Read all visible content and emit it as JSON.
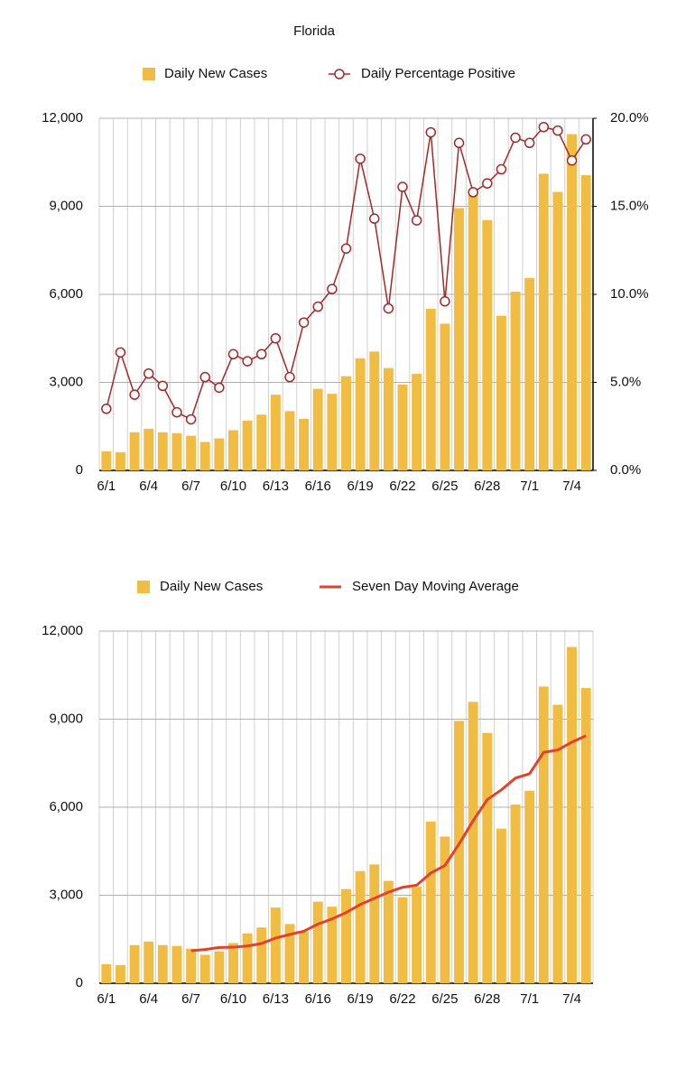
{
  "chart_data": [
    {
      "type": "combo",
      "title": "Florida",
      "categories": [
        "6/1",
        null,
        null,
        "6/4",
        null,
        null,
        "6/7",
        null,
        null,
        "6/10",
        null,
        null,
        "6/13",
        null,
        null,
        "6/16",
        null,
        null,
        "6/19",
        null,
        null,
        "6/22",
        null,
        null,
        "6/25",
        null,
        null,
        "6/28",
        null,
        null,
        "7/1",
        null,
        null,
        "7/4",
        null
      ],
      "series": [
        {
          "name": "Daily New Cases",
          "type": "bar",
          "color": "#f0bd42",
          "values": [
            650,
            620,
            1300,
            1420,
            1300,
            1270,
            1180,
            970,
            1090,
            1370,
            1700,
            1900,
            2580,
            2020,
            1760,
            2780,
            2610,
            3210,
            3820,
            4050,
            3490,
            2930,
            3290,
            5510,
            5000,
            8940,
            9590,
            8530,
            5270,
            6090,
            6560,
            10110,
            9490,
            11460,
            10060
          ]
        },
        {
          "name": "Daily Percentage Positive",
          "type": "line",
          "marker": "circle",
          "axis": "y2",
          "color": "#a3282a",
          "values": [
            3.5,
            6.7,
            4.3,
            5.5,
            4.8,
            3.3,
            2.9,
            5.3,
            4.7,
            6.6,
            6.2,
            6.6,
            7.5,
            5.3,
            8.4,
            9.3,
            10.3,
            12.6,
            17.7,
            14.3,
            9.2,
            16.1,
            14.2,
            19.2,
            9.6,
            18.6,
            15.8,
            16.3,
            17.1,
            18.9,
            18.6,
            19.5,
            19.3,
            17.6,
            18.8
          ]
        }
      ],
      "ylim": [
        0,
        12000
      ],
      "yticks": [
        0,
        {
          "value": 3000,
          "label": "3,000"
        },
        {
          "value": 6000,
          "label": "6,000"
        },
        {
          "value": 9000,
          "label": "9,000"
        },
        {
          "value": 12000,
          "label": "12,000"
        }
      ],
      "y2lim": [
        0,
        20
      ],
      "y2ticks": [
        {
          "value": 0,
          "label": "0.0%"
        },
        {
          "value": 5,
          "label": "5.0%"
        },
        {
          "value": 10,
          "label": "10.0%"
        },
        {
          "value": 15,
          "label": "15.0%"
        },
        {
          "value": 20,
          "label": "20.0%"
        }
      ],
      "grid": true
    },
    {
      "type": "combo",
      "categories": [
        "6/1",
        null,
        null,
        "6/4",
        null,
        null,
        "6/7",
        null,
        null,
        "6/10",
        null,
        null,
        "6/13",
        null,
        null,
        "6/16",
        null,
        null,
        "6/19",
        null,
        null,
        "6/22",
        null,
        null,
        "6/25",
        null,
        null,
        "6/28",
        null,
        null,
        "7/1",
        null,
        null,
        "7/4",
        null
      ],
      "series": [
        {
          "name": "Daily New Cases",
          "type": "bar",
          "color": "#f0bd42",
          "values": [
            650,
            620,
            1300,
            1420,
            1300,
            1270,
            1180,
            970,
            1090,
            1370,
            1700,
            1900,
            2580,
            2020,
            1760,
            2780,
            2610,
            3210,
            3820,
            4050,
            3490,
            2930,
            3290,
            5510,
            5000,
            8940,
            9590,
            8530,
            5270,
            6090,
            6560,
            10110,
            9490,
            11460,
            10060
          ]
        },
        {
          "name": "Seven Day Moving Average",
          "type": "line",
          "color": "#e0432b",
          "values": [
            null,
            null,
            null,
            null,
            null,
            null,
            1106,
            1151,
            1219,
            1229,
            1269,
            1354,
            1541,
            1661,
            1774,
            2016,
            2193,
            2409,
            2683,
            2893,
            3103,
            3270,
            3343,
            3757,
            4013,
            4744,
            5536,
            6256,
            6590,
            6990,
            7140,
            7870,
            7949,
            8216,
            8434
          ]
        }
      ],
      "ylim": [
        0,
        12000
      ],
      "yticks": [
        0,
        {
          "value": 3000,
          "label": "3,000"
        },
        {
          "value": 6000,
          "label": "6,000"
        },
        {
          "value": 9000,
          "label": "9,000"
        },
        {
          "value": 12000,
          "label": "12,000"
        }
      ],
      "grid": true
    }
  ]
}
